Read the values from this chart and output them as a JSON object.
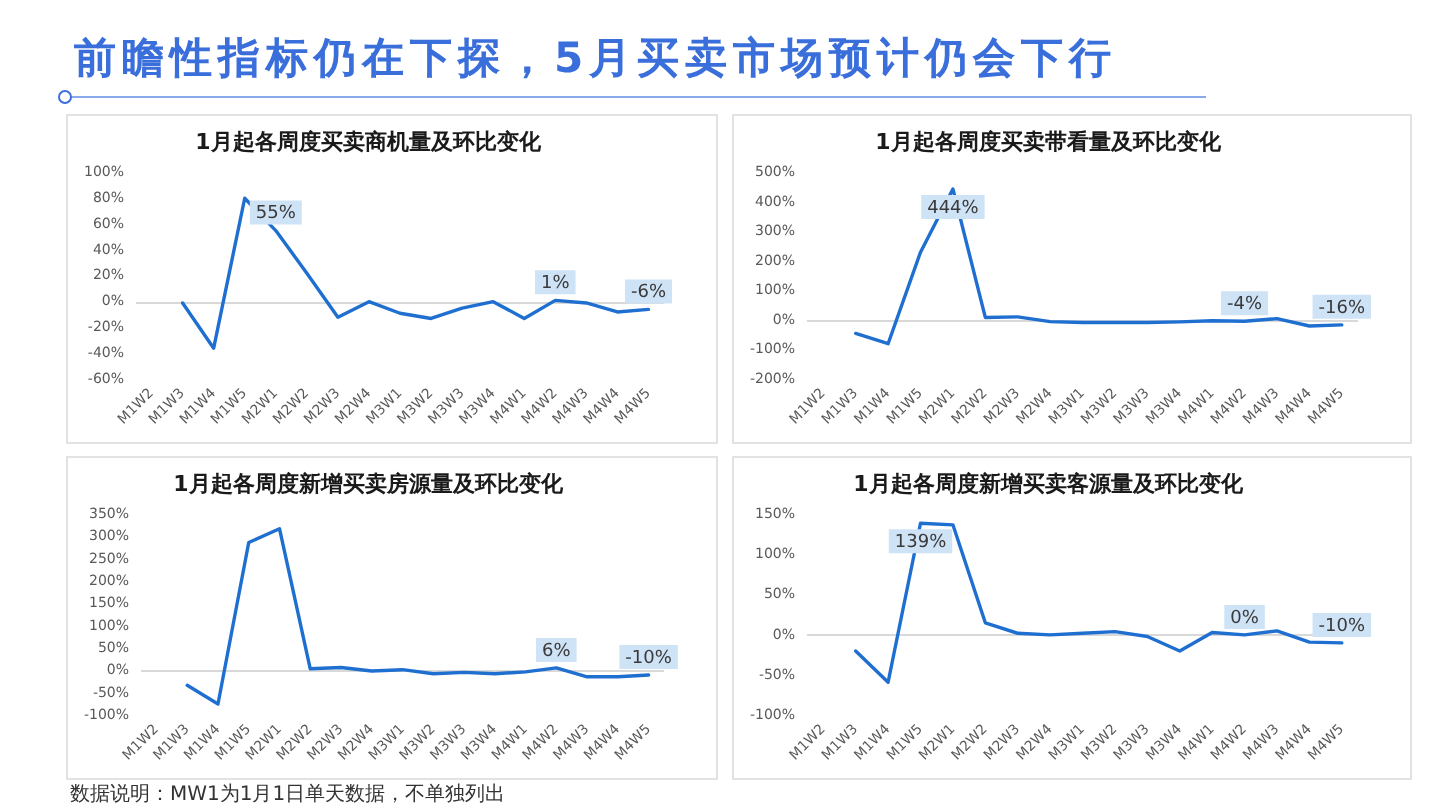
{
  "chart_data": [
    {
      "type": "other",
      "title": "前瞻性指标仍在下探，5月买卖市场预计仍会下行",
      "annotations": [
        "数据说明：MW1为1月1日单天数据，不单独列出"
      ]
    },
    {
      "type": "line",
      "title": "1月起各周度买卖商机量及环比变化",
      "categories": [
        "M1W2",
        "M1W3",
        "M1W4",
        "M1W5",
        "M2W1",
        "M2W2",
        "M2W3",
        "M2W4",
        "M3W1",
        "M3W2",
        "M3W3",
        "M3W4",
        "M4W1",
        "M4W2",
        "M4W3",
        "M4W4",
        "M4W5"
      ],
      "series": [
        {
          "color": "#1f6fd1",
          "values": [
            null,
            -1,
            -36,
            80,
            55,
            22,
            -12,
            0,
            -9,
            -13,
            -5,
            0,
            -13,
            1,
            -1,
            -8,
            -6
          ],
          "value_labels": [
            null,
            null,
            null,
            null,
            "55%",
            null,
            null,
            null,
            null,
            null,
            null,
            null,
            null,
            "1%",
            null,
            null,
            "-6%"
          ]
        }
      ],
      "ylim": [
        -60,
        100
      ],
      "yticks": [
        {
          "value": -60,
          "label": "-60%"
        },
        {
          "value": -40,
          "label": "-40%"
        },
        {
          "value": -20,
          "label": "-20%"
        },
        {
          "value": 0,
          "label": "0%"
        },
        {
          "value": 20,
          "label": "20%"
        },
        {
          "value": 40,
          "label": "40%"
        },
        {
          "value": 60,
          "label": "60%"
        },
        {
          "value": 80,
          "label": "80%"
        },
        {
          "value": 100,
          "label": "100%"
        }
      ],
      "ref_lines": [
        {
          "axis": "y",
          "value": 0,
          "color": "#d9d9d9"
        }
      ],
      "marker": "none"
    },
    {
      "type": "line",
      "title": "1月起各周度买卖带看量及环比变化",
      "categories": [
        "M1W2",
        "M1W3",
        "M1W4",
        "M1W5",
        "M2W1",
        "M2W2",
        "M2W3",
        "M2W4",
        "M3W1",
        "M3W2",
        "M3W3",
        "M3W4",
        "M4W1",
        "M4W2",
        "M4W3",
        "M4W4",
        "M4W5"
      ],
      "series": [
        {
          "color": "#1f6fd1",
          "values": [
            null,
            -45,
            -80,
            230,
            444,
            9,
            11,
            -5,
            -8,
            -8,
            -8,
            -6,
            -2,
            -4,
            5,
            -20,
            -16
          ],
          "value_labels": [
            null,
            null,
            null,
            null,
            "444%",
            null,
            null,
            null,
            null,
            null,
            null,
            null,
            null,
            "-4%",
            null,
            null,
            "-16%"
          ]
        }
      ],
      "ylim": [
        -200,
        500
      ],
      "yticks": [
        {
          "value": -200,
          "label": "-200%"
        },
        {
          "value": -100,
          "label": "-100%"
        },
        {
          "value": 0,
          "label": "0%"
        },
        {
          "value": 100,
          "label": "100%"
        },
        {
          "value": 200,
          "label": "200%"
        },
        {
          "value": 300,
          "label": "300%"
        },
        {
          "value": 400,
          "label": "400%"
        },
        {
          "value": 500,
          "label": "500%"
        }
      ],
      "ref_lines": [
        {
          "axis": "y",
          "value": 0,
          "color": "#d9d9d9"
        }
      ],
      "marker": "none"
    },
    {
      "type": "line",
      "title": "1月起各周度新增买卖房源量及环比变化",
      "categories": [
        "M1W2",
        "M1W3",
        "M1W4",
        "M1W5",
        "M2W1",
        "M2W2",
        "M2W3",
        "M2W4",
        "M3W1",
        "M3W2",
        "M3W3",
        "M3W4",
        "M4W1",
        "M4W2",
        "M4W3",
        "M4W4",
        "M4W5"
      ],
      "series": [
        {
          "color": "#1f6fd1",
          "values": [
            null,
            -33,
            -75,
            287,
            318,
            4,
            7,
            -1,
            2,
            -7,
            -4,
            -7,
            -3,
            6,
            -14,
            -14,
            -10
          ],
          "value_labels": [
            null,
            null,
            null,
            null,
            null,
            null,
            null,
            null,
            null,
            null,
            null,
            null,
            null,
            "6%",
            null,
            null,
            "-10%"
          ]
        }
      ],
      "ylim": [
        -100,
        350
      ],
      "yticks": [
        {
          "value": -100,
          "label": "-100%"
        },
        {
          "value": -50,
          "label": "-50%"
        },
        {
          "value": 0,
          "label": "0%"
        },
        {
          "value": 50,
          "label": "50%"
        },
        {
          "value": 100,
          "label": "100%"
        },
        {
          "value": 150,
          "label": "150%"
        },
        {
          "value": 200,
          "label": "200%"
        },
        {
          "value": 250,
          "label": "250%"
        },
        {
          "value": 300,
          "label": "300%"
        },
        {
          "value": 350,
          "label": "350%"
        }
      ],
      "ref_lines": [
        {
          "axis": "y",
          "value": 0,
          "color": "#d9d9d9"
        }
      ],
      "marker": "none"
    },
    {
      "type": "line",
      "title": "1月起各周度新增买卖客源量及环比变化",
      "categories": [
        "M1W2",
        "M1W3",
        "M1W4",
        "M1W5",
        "M2W1",
        "M2W2",
        "M2W3",
        "M2W4",
        "M3W1",
        "M3W2",
        "M3W3",
        "M3W4",
        "M4W1",
        "M4W2",
        "M4W3",
        "M4W4",
        "M4W5"
      ],
      "series": [
        {
          "color": "#1f6fd1",
          "values": [
            null,
            -20,
            -59,
            139,
            137,
            15,
            2,
            0,
            2,
            4,
            -2,
            -20,
            3,
            0,
            5,
            -9,
            -10
          ],
          "value_labels": [
            null,
            null,
            null,
            "139%",
            null,
            null,
            null,
            null,
            null,
            null,
            null,
            null,
            null,
            "0%",
            null,
            null,
            "-10%"
          ]
        }
      ],
      "ylim": [
        -100,
        150
      ],
      "yticks": [
        {
          "value": -100,
          "label": "-100%"
        },
        {
          "value": -50,
          "label": "-50%"
        },
        {
          "value": 0,
          "label": "0%"
        },
        {
          "value": 50,
          "label": "50%"
        },
        {
          "value": 100,
          "label": "100%"
        },
        {
          "value": 150,
          "label": "150%"
        }
      ],
      "ref_lines": [
        {
          "axis": "y",
          "value": 0,
          "color": "#d9d9d9"
        }
      ],
      "marker": "none"
    }
  ]
}
